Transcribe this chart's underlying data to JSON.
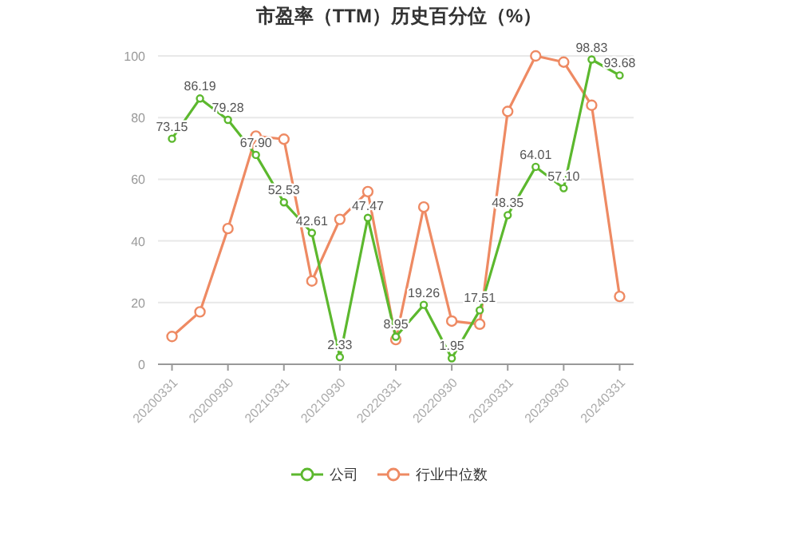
{
  "chart_data": {
    "type": "line",
    "title": "市盈率（TTM）历史百分位（%）",
    "categories": [
      "20200331",
      null,
      "20200930",
      null,
      "20210331",
      null,
      "20210930",
      null,
      "20220331",
      null,
      "20220930",
      null,
      "20230331",
      null,
      "20230930",
      null,
      "20240331"
    ],
    "series": [
      {
        "name": "公司",
        "color": "#5cb82e",
        "values": [
          73.15,
          86.19,
          79.28,
          67.9,
          52.53,
          42.61,
          2.33,
          47.47,
          8.95,
          19.26,
          1.95,
          17.51,
          48.35,
          64.01,
          57.1,
          98.83,
          93.68
        ],
        "value_labels": [
          "73.15",
          "86.19",
          "79.28",
          "67.90",
          "52.53",
          "42.61",
          "2.33",
          "47.47",
          "8.95",
          "19.26",
          "1.95",
          "17.51",
          "48.35",
          "64.01",
          "57.10",
          "98.83",
          "93.68"
        ]
      },
      {
        "name": "行业中位数",
        "color": "#ee8a63",
        "values": [
          9,
          17,
          44,
          74,
          73,
          27,
          47,
          56,
          8,
          51,
          14,
          13,
          82,
          100,
          98,
          84,
          22
        ]
      }
    ],
    "ylim": [
      0,
      100
    ],
    "yticks": [
      0,
      20,
      40,
      60,
      80,
      100
    ],
    "grid": "y",
    "legend": "bottom",
    "marker": "circle",
    "line_style": "solid"
  }
}
